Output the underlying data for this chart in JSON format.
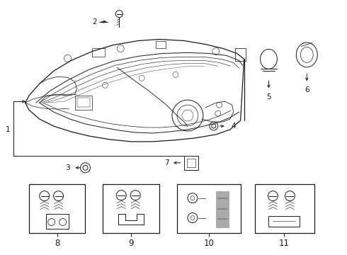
{
  "bg_color": "#ffffff",
  "line_color": "#1a1a1a",
  "gray_color": "#aaaaaa",
  "figsize": [
    4.9,
    3.6
  ],
  "dpi": 100,
  "label_fontsize": 7.5
}
